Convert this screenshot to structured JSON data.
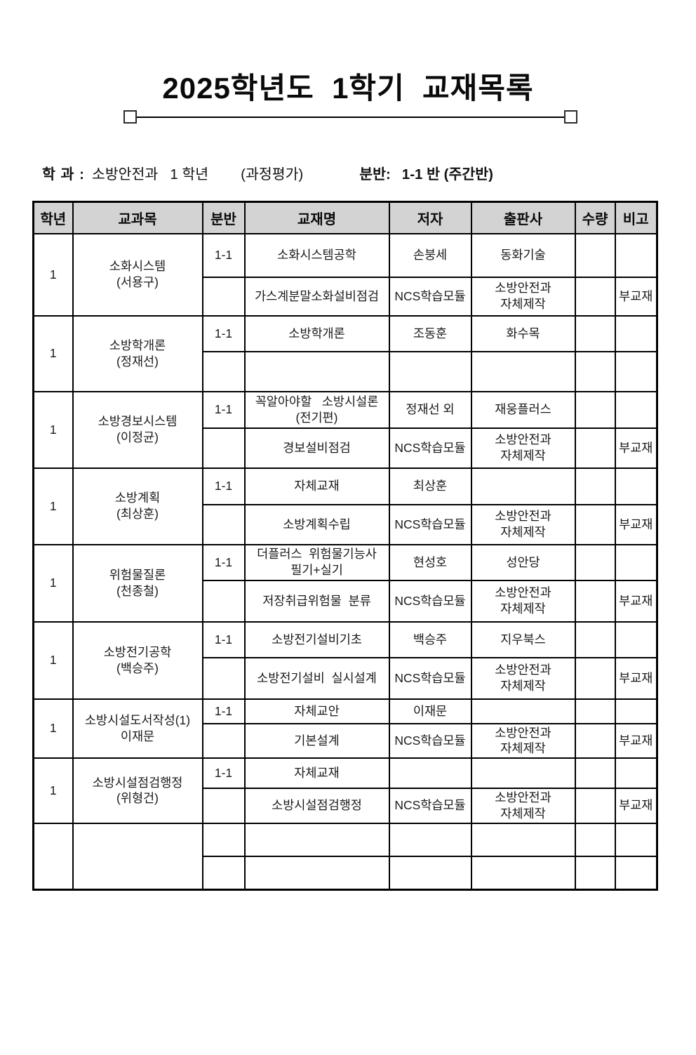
{
  "page": {
    "title": "2025학년도  1학기  교재목록"
  },
  "info": {
    "dept_label": "학 과 :",
    "dept_value": "소방안전과   1 학년",
    "eval_note": "(과정평가)",
    "class_label": "분반:",
    "class_value": "1-1 반 (주간반)"
  },
  "table": {
    "headers": [
      "학년",
      "교과목",
      "분반",
      "교재명",
      "저자",
      "출판사",
      "수량",
      "비고"
    ],
    "groups": [
      {
        "grade": "1",
        "subject": [
          "소화시스템",
          "(서용구)"
        ],
        "rows": [
          {
            "ban": "1-1",
            "title": [
              "소화시스템공학"
            ],
            "author": "손붕세",
            "publisher": [
              "동화기술"
            ],
            "qty": "",
            "note": ""
          },
          {
            "ban": "",
            "title": [
              "가스계분말소화설비점검"
            ],
            "author": "NCS학습모듈",
            "publisher": [
              "소방안전과",
              "자체제작"
            ],
            "qty": "",
            "note": "부교재"
          }
        ]
      },
      {
        "grade": "1",
        "subject": [
          "소방학개론",
          "(정재선)"
        ],
        "rows": [
          {
            "ban": "1-1",
            "title": [
              "소방학개론"
            ],
            "author": "조동훈",
            "publisher": [
              "화수목"
            ],
            "qty": "",
            "note": ""
          },
          {
            "ban": "",
            "title": [],
            "author": "",
            "publisher": [],
            "qty": "",
            "note": ""
          }
        ]
      },
      {
        "grade": "1",
        "subject": [
          "소방경보시스템",
          "(이정균)"
        ],
        "rows": [
          {
            "ban": "1-1",
            "title": [
              "꼭알아야할   소방시설론",
              "(전기편)"
            ],
            "author": "정재선 외",
            "publisher": [
              "재웅플러스"
            ],
            "qty": "",
            "note": ""
          },
          {
            "ban": "",
            "title": [
              "경보설비점검"
            ],
            "author": "NCS학습모듈",
            "publisher": [
              "소방안전과",
              "자체제작"
            ],
            "qty": "",
            "note": "부교재"
          }
        ]
      },
      {
        "grade": "1",
        "subject": [
          "소방계획",
          "(최상훈)"
        ],
        "rows": [
          {
            "ban": "1-1",
            "title": [
              "자체교재"
            ],
            "author": "최상훈",
            "publisher": [],
            "qty": "",
            "note": ""
          },
          {
            "ban": "",
            "title": [
              "소방계획수립"
            ],
            "author": "NCS학습모듈",
            "publisher": [
              "소방안전과",
              "자체제작"
            ],
            "qty": "",
            "note": "부교재"
          }
        ]
      },
      {
        "grade": "1",
        "subject": [
          "위험물질론",
          "(천종철)"
        ],
        "rows": [
          {
            "ban": "1-1",
            "title": [
              "더플러스  위험물기능사",
              "필기+실기"
            ],
            "author": "현성호",
            "publisher": [
              "성안당"
            ],
            "qty": "",
            "note": ""
          },
          {
            "ban": "",
            "title": [
              "저장취급위험물  분류"
            ],
            "author": "NCS학습모듈",
            "publisher": [
              "소방안전과",
              "자체제작"
            ],
            "qty": "",
            "note": "부교재"
          }
        ]
      },
      {
        "grade": "1",
        "subject": [
          "소방전기공학",
          "(백승주)"
        ],
        "rows": [
          {
            "ban": "1-1",
            "title": [
              "소방전기설비기초"
            ],
            "author": "백승주",
            "publisher": [
              "지우북스"
            ],
            "qty": "",
            "note": ""
          },
          {
            "ban": "",
            "title": [
              "소방전기설비  실시설계"
            ],
            "author": "NCS학습모듈",
            "publisher": [
              "소방안전과",
              "자체제작"
            ],
            "qty": "",
            "note": "부교재"
          }
        ]
      },
      {
        "grade": "1",
        "subject": [
          "소방시설도서작성(1)",
          "이재문"
        ],
        "rows": [
          {
            "ban": "1-1",
            "title": [
              "자체교안"
            ],
            "author": "이재문",
            "publisher": [],
            "qty": "",
            "note": ""
          },
          {
            "ban": "",
            "title": [
              "기본설계"
            ],
            "author": "NCS학습모듈",
            "publisher": [
              "소방안전과",
              "자체제작"
            ],
            "qty": "",
            "note": "부교재"
          }
        ]
      },
      {
        "grade": "1",
        "subject": [
          "소방시설점검행정",
          "(위형건)"
        ],
        "rows": [
          {
            "ban": "1-1",
            "title": [
              "자체교재"
            ],
            "author": "",
            "publisher": [],
            "qty": "",
            "note": ""
          },
          {
            "ban": "",
            "title": [
              "소방시설점검행정"
            ],
            "author": "NCS학습모듈",
            "publisher": [
              "소방안전과",
              "자체제작"
            ],
            "qty": "",
            "note": "부교재"
          }
        ]
      },
      {
        "grade": "",
        "subject": [],
        "rows": [
          {
            "ban": "",
            "title": [],
            "author": "",
            "publisher": [],
            "qty": "",
            "note": ""
          },
          {
            "ban": "",
            "title": [],
            "author": "",
            "publisher": [],
            "qty": "",
            "note": ""
          }
        ]
      }
    ]
  },
  "colors": {
    "header_bg": "#d3d3d3",
    "border": "#000000",
    "text": "#1a1a1a"
  }
}
